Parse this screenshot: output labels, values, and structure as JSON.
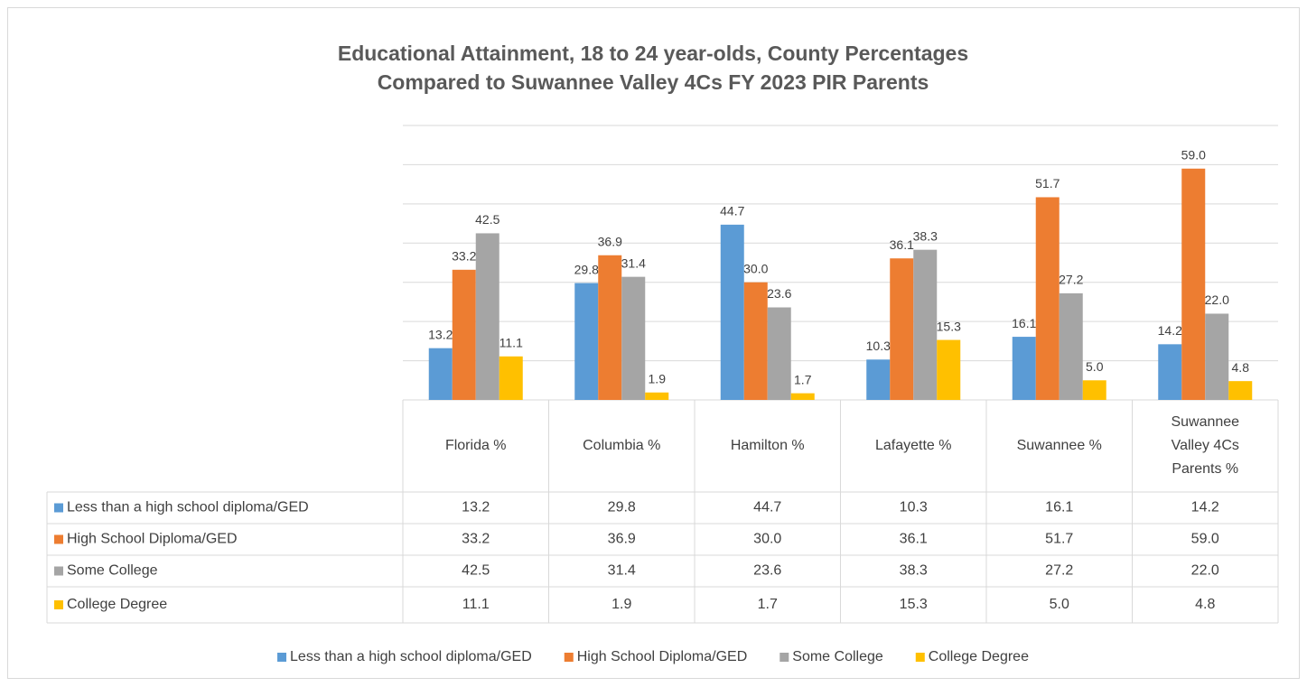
{
  "chart_data": {
    "type": "bar",
    "title": [
      "Educational Attainment, 18 to 24 year-olds, County Percentages",
      "Compared to Suwannee Valley 4Cs FY 2023 PIR Parents"
    ],
    "categories": [
      "Florida %",
      "Columbia %",
      "Hamilton %",
      "Lafayette %",
      "Suwannee %",
      "Suwannee Valley 4Cs Parents %"
    ],
    "series": [
      {
        "name": "Less than a high school diploma/GED",
        "color": "#5b9bd5",
        "values": [
          13.2,
          29.8,
          44.7,
          10.3,
          16.1,
          14.2
        ],
        "value_labels": [
          "13.2",
          "29.8",
          "44.7",
          "10.3",
          "16.1",
          "14.2"
        ]
      },
      {
        "name": "High School Diploma/GED",
        "color": "#ed7d31",
        "values": [
          33.2,
          36.9,
          30.0,
          36.1,
          51.7,
          59.0
        ],
        "value_labels": [
          "33.2",
          "36.9",
          "30.0",
          "36.1",
          "51.7",
          "59.0"
        ]
      },
      {
        "name": "Some College",
        "color": "#a5a5a5",
        "values": [
          42.5,
          31.4,
          23.6,
          38.3,
          27.2,
          22.0
        ],
        "value_labels": [
          "42.5",
          "31.4",
          "23.6",
          "38.3",
          "27.2",
          "22.0"
        ]
      },
      {
        "name": "College Degree",
        "color": "#ffc000",
        "values": [
          11.1,
          1.9,
          1.7,
          15.3,
          5.0,
          4.8
        ],
        "value_labels": [
          "11.1",
          "1.9",
          "1.7",
          "15.3",
          "5.0",
          "4.8"
        ]
      }
    ],
    "ylim": [
      0,
      70
    ],
    "yticks": [
      0,
      10,
      20,
      30,
      40,
      50,
      60,
      70
    ],
    "grid": true,
    "legend": "bottom"
  }
}
